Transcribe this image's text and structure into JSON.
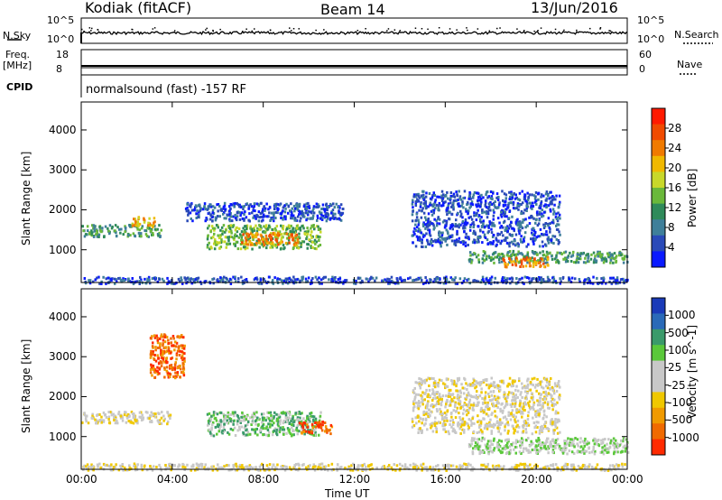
{
  "header": {
    "station": "Kodiak (fitACF)",
    "beam": "Beam 14",
    "date": "13/Jun/2016"
  },
  "status_panels": {
    "nsky_label": "N.Sky",
    "nsky_ticks": [
      "10^5",
      "10^0"
    ],
    "nsearch_label": "N.Search",
    "nsearch_ticks": [
      "10^5",
      "10^0"
    ],
    "freq_label_1": "Freq.",
    "freq_label_2": "[MHz]",
    "freq_ticks": [
      "18",
      "8"
    ],
    "nave_label": "Nave",
    "nave_ticks": [
      "60",
      "0"
    ],
    "cpid_label": "CPID",
    "cpid_text": "normalsound (fast) -157 RF"
  },
  "chart_data": [
    {
      "type": "heatmap",
      "panel": "power",
      "ylabel": "Slant Range [km]",
      "xlabel": "",
      "x_ticks": [
        "00:00",
        "04:00",
        "08:00",
        "12:00",
        "16:00",
        "20:00",
        "00:00"
      ],
      "xlim": [
        0,
        24
      ],
      "y_ticks": [
        1000,
        2000,
        3000,
        4000
      ],
      "ylim": [
        180,
        4700
      ],
      "colorbar": {
        "label": "Power [dB]",
        "ticks": [
          "28",
          "24",
          "20",
          "16",
          "12",
          "8",
          "4"
        ],
        "colors": [
          "#0a1aff",
          "#2a4ab8",
          "#3f7f9a",
          "#2f8a5a",
          "#6ab83a",
          "#c8d82a",
          "#f0b800",
          "#f07a00",
          "#f04a00",
          "#ff1a00"
        ]
      },
      "echo_regions": [
        {
          "t_start": 0.0,
          "t_end": 3.5,
          "range_start": 1350,
          "range_end": 1650,
          "level": "12"
        },
        {
          "t_start": 2.2,
          "t_end": 3.2,
          "range_start": 1600,
          "range_end": 1850,
          "level": "20"
        },
        {
          "t_start": 5.5,
          "t_end": 10.5,
          "range_start": 1050,
          "range_end": 1650,
          "level": "16"
        },
        {
          "t_start": 7.0,
          "t_end": 9.5,
          "range_start": 1150,
          "range_end": 1450,
          "level": "24"
        },
        {
          "t_start": 4.5,
          "t_end": 11.5,
          "range_start": 1750,
          "range_end": 2200,
          "level": "8"
        },
        {
          "t_start": 14.5,
          "t_end": 21.0,
          "range_start": 1100,
          "range_end": 2500,
          "level": "8"
        },
        {
          "t_start": 17.0,
          "t_end": 24.0,
          "range_start": 700,
          "range_end": 1000,
          "level": "12"
        },
        {
          "t_start": 18.5,
          "t_end": 20.5,
          "range_start": 600,
          "range_end": 850,
          "level": "24"
        },
        {
          "t_start": 0.0,
          "t_end": 24.0,
          "range_start": 180,
          "range_end": 350,
          "level": "8"
        }
      ]
    },
    {
      "type": "heatmap",
      "panel": "velocity",
      "ylabel": "Slant Range [km]",
      "xlabel": "Time UT",
      "x_ticks": [
        "00:00",
        "04:00",
        "08:00",
        "12:00",
        "16:00",
        "20:00",
        "00:00"
      ],
      "xlim": [
        0,
        24
      ],
      "y_ticks": [
        1000,
        2000,
        3000,
        4000
      ],
      "ylim": [
        180,
        4700
      ],
      "colorbar": {
        "label": "Velocity [m s^-1]",
        "ticks": [
          "1000",
          "500",
          "100",
          "25",
          "-25",
          "-100",
          "-500",
          "-1000"
        ],
        "colors": [
          "#1a3ab8",
          "#2a6ab8",
          "#3a9a6a",
          "#5ac83a",
          "#c8c8c8",
          "#c8c8c8",
          "#f0c800",
          "#f09a00",
          "#f06a00",
          "#ff2a00"
        ]
      },
      "echo_regions": [
        {
          "t_start": 0.0,
          "t_end": 4.0,
          "range_start": 1350,
          "range_end": 1650,
          "level": "-25"
        },
        {
          "t_start": 5.5,
          "t_end": 10.5,
          "range_start": 1050,
          "range_end": 1650,
          "level": "100"
        },
        {
          "t_start": 3.0,
          "t_end": 4.5,
          "range_start": 2500,
          "range_end": 3600,
          "level": "-500"
        },
        {
          "t_start": 9.5,
          "t_end": 11.0,
          "range_start": 1100,
          "range_end": 1400,
          "level": "-500"
        },
        {
          "t_start": 14.5,
          "t_end": 21.0,
          "range_start": 1100,
          "range_end": 2500,
          "level": "-25"
        },
        {
          "t_start": 17.0,
          "t_end": 24.0,
          "range_start": 600,
          "range_end": 1000,
          "level": "25"
        },
        {
          "t_start": 0.0,
          "t_end": 24.0,
          "range_start": 180,
          "range_end": 350,
          "level": "-25"
        }
      ]
    }
  ]
}
